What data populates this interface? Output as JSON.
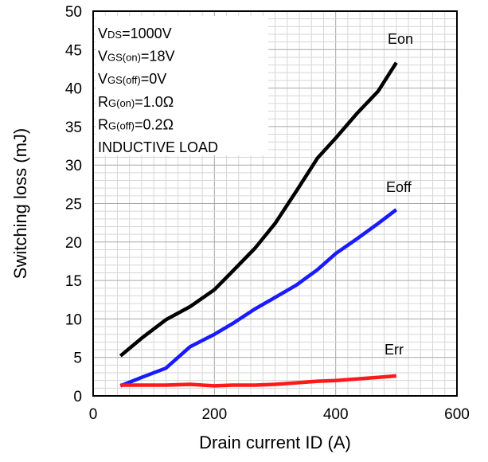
{
  "chart_data": {
    "type": "line",
    "title": "",
    "xlabel": "Drain current ID (A)",
    "ylabel": "Switching loss (mJ)",
    "xlim": [
      0,
      600
    ],
    "ylim": [
      0,
      50
    ],
    "xticks": [
      0,
      200,
      400,
      600
    ],
    "yticks": [
      0,
      5,
      10,
      15,
      20,
      25,
      30,
      35,
      40,
      45,
      50
    ],
    "grid": true,
    "legend": "none",
    "annotations": [
      {
        "main": "V",
        "sub": "DS",
        "rest": "=1000V"
      },
      {
        "main": "V",
        "sub": "GS(on)",
        "rest": "=18V"
      },
      {
        "main": "V",
        "sub": "GS(off)",
        "rest": "=0V"
      },
      {
        "main": "R",
        "sub": "G(on)",
        "rest": "=1.0Ω"
      },
      {
        "main": "R",
        "sub": "G(off)",
        "rest": "=0.2Ω"
      },
      {
        "main": "INDUCTIVE LOAD",
        "sub": "",
        "rest": ""
      }
    ],
    "series": [
      {
        "name": "Eon",
        "color": "#000000",
        "x": [
          45,
          80,
          120,
          160,
          200,
          230,
          267,
          300,
          335,
          370,
          400,
          435,
          470,
          500
        ],
        "y": [
          5.2,
          7.5,
          9.9,
          11.6,
          13.8,
          16.2,
          19.2,
          22.4,
          26.6,
          30.9,
          33.5,
          36.7,
          39.6,
          43.3
        ]
      },
      {
        "name": "Eoff",
        "color": "#1a1aff",
        "x": [
          45,
          80,
          120,
          160,
          200,
          230,
          267,
          300,
          335,
          370,
          400,
          435,
          470,
          500
        ],
        "y": [
          1.3,
          2.4,
          3.6,
          6.4,
          8.0,
          9.4,
          11.3,
          12.8,
          14.4,
          16.4,
          18.5,
          20.4,
          22.4,
          24.2
        ]
      },
      {
        "name": "Err",
        "color": "#ff1a1a",
        "x": [
          45,
          80,
          120,
          160,
          200,
          230,
          267,
          300,
          335,
          370,
          400,
          435,
          470,
          500
        ],
        "y": [
          1.4,
          1.4,
          1.4,
          1.5,
          1.3,
          1.4,
          1.4,
          1.5,
          1.7,
          1.9,
          2.0,
          2.2,
          2.4,
          2.6
        ]
      }
    ]
  }
}
